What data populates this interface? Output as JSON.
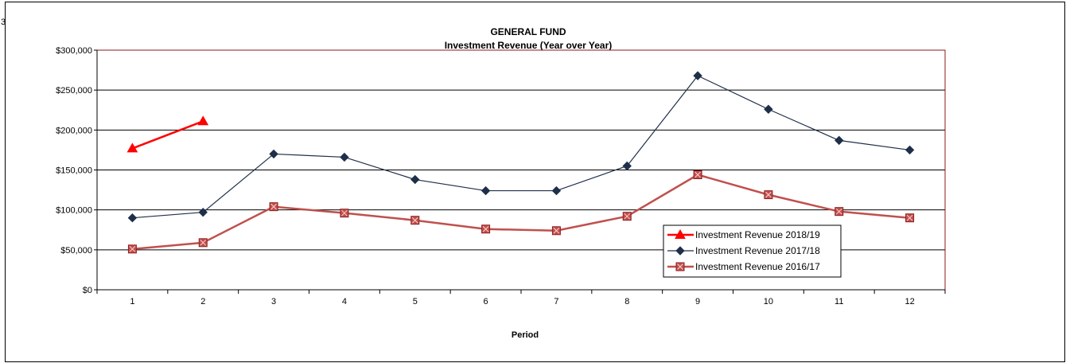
{
  "corner_mark": "3",
  "chart_data": {
    "type": "line",
    "title": "GENERAL FUND",
    "subtitle": "Investment Revenue (Year over Year)",
    "xlabel": "Period",
    "ylabel": "",
    "categories": [
      "1",
      "2",
      "3",
      "4",
      "5",
      "6",
      "7",
      "8",
      "9",
      "10",
      "11",
      "12"
    ],
    "ylim": [
      0,
      300000
    ],
    "yticks": [
      0,
      50000,
      100000,
      150000,
      200000,
      250000,
      300000
    ],
    "ytick_labels": [
      "$0",
      "$50,000",
      "$100,000",
      "$150,000",
      "$200,000",
      "$250,000",
      "$300,000"
    ],
    "grid": true,
    "legend_position": "bottom-right",
    "series": [
      {
        "name": "Investment Revenue 2018/19",
        "color": "#ff0000",
        "marker": "triangle",
        "values": [
          177000,
          211000,
          null,
          null,
          null,
          null,
          null,
          null,
          null,
          null,
          null,
          null
        ]
      },
      {
        "name": "Investment Revenue 2017/18",
        "color": "#1f2f4a",
        "marker": "diamond",
        "values": [
          90000,
          97000,
          170000,
          166000,
          138000,
          124000,
          124000,
          155000,
          268000,
          226000,
          187000,
          175000
        ]
      },
      {
        "name": "Investment Revenue 2016/17",
        "color": "#c0504d",
        "marker": "square-x",
        "values": [
          51000,
          59000,
          104000,
          96000,
          87000,
          76000,
          74000,
          92000,
          144000,
          119000,
          98000,
          90000
        ]
      }
    ]
  }
}
